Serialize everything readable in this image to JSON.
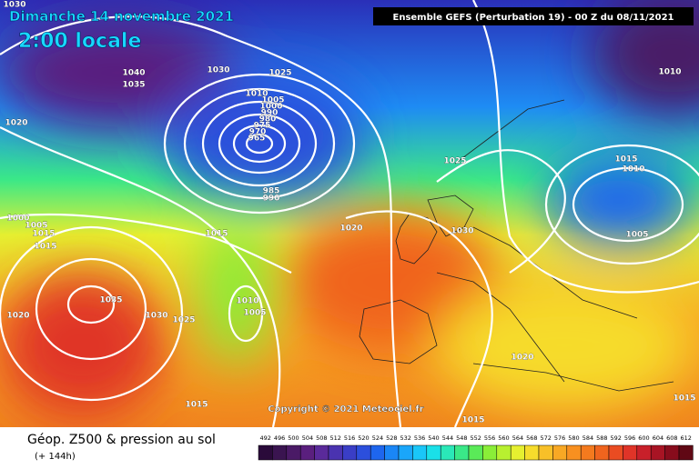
{
  "header": {
    "date": "Dimanche 14 novembre 2021",
    "time": "2:00 locale",
    "model": "Ensemble GEFS  (Perturbation 19)  -  00 Z du 08/11/2021"
  },
  "copyright": "Copyright © 2021 Meteociel.fr",
  "footer": {
    "title": "Géop. Z500 & pression au sol",
    "lead": "(+ 144h)"
  },
  "isobar_labels": [
    1030,
    1040,
    1035,
    1030,
    1025,
    1020,
    1010,
    1005,
    1000,
    990,
    980,
    975,
    970,
    965,
    985,
    990,
    1000,
    1005,
    1015,
    1015,
    1015,
    1035,
    1020,
    1030,
    1025,
    1010,
    1005,
    1015,
    1020,
    1030,
    1025,
    1015,
    1010,
    1005,
    1010,
    1020,
    1015,
    1015
  ],
  "legend": {
    "values": [
      492,
      496,
      500,
      504,
      508,
      512,
      516,
      520,
      524,
      528,
      532,
      536,
      540,
      544,
      548,
      552,
      556,
      560,
      564,
      568,
      572,
      576,
      580,
      584,
      588,
      592,
      596,
      600,
      604,
      608,
      612
    ],
    "colors": [
      "#2a0a3a",
      "#3a1450",
      "#4a1a66",
      "#5a1f7e",
      "#5a2a9a",
      "#4a33b0",
      "#3a3ec6",
      "#2c4fdc",
      "#1e66ee",
      "#1a86f6",
      "#1aa6fa",
      "#1ac6f8",
      "#1ae0e8",
      "#2ae8b8",
      "#3ae888",
      "#5aea58",
      "#8aee38",
      "#b8f030",
      "#e6f030",
      "#f6dc2c",
      "#f8c028",
      "#f8a824",
      "#f89020",
      "#f47a1e",
      "#f0641e",
      "#ea4c22",
      "#e03428",
      "#c8202a",
      "#a81424",
      "#880c1c",
      "#600814"
    ]
  }
}
